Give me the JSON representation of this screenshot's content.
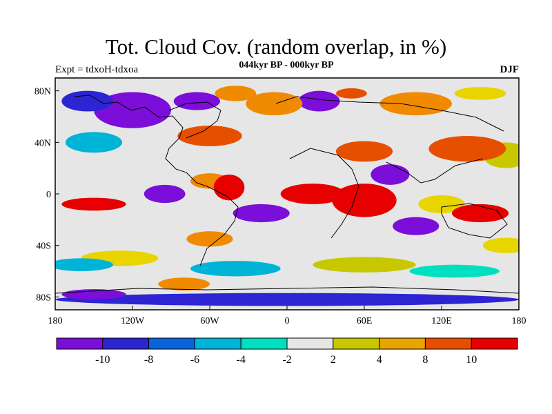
{
  "title": "Tot. Cloud Cov. (random overlap, in %)",
  "subtitle": "044kyr BP - 000kyr BP",
  "experiment": "Expt = tdxoH-tdxoa",
  "season": "DJF",
  "map": {
    "projection": "cylindrical-equidistant",
    "lon_range": [
      -180,
      180
    ],
    "lat_range": [
      -90,
      90
    ],
    "y_ticks": [
      {
        "lat": 80,
        "label": "80N"
      },
      {
        "lat": 40,
        "label": "40N"
      },
      {
        "lat": 0,
        "label": "0"
      },
      {
        "lat": -40,
        "label": "40S"
      },
      {
        "lat": -80,
        "label": "80S"
      }
    ],
    "x_ticks": [
      {
        "lon": -180,
        "label": "180"
      },
      {
        "lon": -120,
        "label": "120W"
      },
      {
        "lon": -60,
        "label": "60W"
      },
      {
        "lon": 0,
        "label": "0"
      },
      {
        "lon": 60,
        "label": "60E"
      },
      {
        "lon": 120,
        "label": "120E"
      },
      {
        "lon": 180,
        "label": "180"
      }
    ],
    "background_color": "#e6e6e6",
    "anomaly_patches": [
      {
        "lon": -120,
        "lat": 65,
        "rx": 30,
        "ry": 14,
        "color": "#7b0ed8"
      },
      {
        "lon": -155,
        "lat": 72,
        "rx": 20,
        "ry": 8,
        "color": "#2d24d2"
      },
      {
        "lon": -70,
        "lat": 72,
        "rx": 18,
        "ry": 7,
        "color": "#7b0ed8"
      },
      {
        "lon": -40,
        "lat": 78,
        "rx": 16,
        "ry": 6,
        "color": "#f08a00"
      },
      {
        "lon": 25,
        "lat": 72,
        "rx": 16,
        "ry": 8,
        "color": "#7b0ed8"
      },
      {
        "lon": 50,
        "lat": 78,
        "rx": 12,
        "ry": 4,
        "color": "#e64f00"
      },
      {
        "lon": -10,
        "lat": 70,
        "rx": 22,
        "ry": 9,
        "color": "#f08a00"
      },
      {
        "lon": 100,
        "lat": 70,
        "rx": 28,
        "ry": 9,
        "color": "#f08a00"
      },
      {
        "lon": 150,
        "lat": 78,
        "rx": 20,
        "ry": 5,
        "color": "#e8d500"
      },
      {
        "lon": -60,
        "lat": 45,
        "rx": 25,
        "ry": 8,
        "color": "#e64f00"
      },
      {
        "lon": -150,
        "lat": 40,
        "rx": 22,
        "ry": 8,
        "color": "#00b4d8"
      },
      {
        "lon": 170,
        "lat": 30,
        "rx": 18,
        "ry": 10,
        "color": "#c8c800"
      },
      {
        "lon": 60,
        "lat": 33,
        "rx": 22,
        "ry": 8,
        "color": "#e64f00"
      },
      {
        "lon": 80,
        "lat": 15,
        "rx": 15,
        "ry": 8,
        "color": "#7b0ed8"
      },
      {
        "lon": 140,
        "lat": 35,
        "rx": 30,
        "ry": 10,
        "color": "#e64f00"
      },
      {
        "lon": -95,
        "lat": 0,
        "rx": 16,
        "ry": 7,
        "color": "#7b0ed8"
      },
      {
        "lon": -150,
        "lat": -8,
        "rx": 25,
        "ry": 5,
        "color": "#e60000"
      },
      {
        "lon": -60,
        "lat": 10,
        "rx": 15,
        "ry": 6,
        "color": "#f08a00"
      },
      {
        "lon": -45,
        "lat": 5,
        "rx": 12,
        "ry": 10,
        "color": "#e60000"
      },
      {
        "lon": 20,
        "lat": 0,
        "rx": 25,
        "ry": 8,
        "color": "#e60000"
      },
      {
        "lon": 60,
        "lat": -5,
        "rx": 25,
        "ry": 13,
        "color": "#e60000"
      },
      {
        "lon": -20,
        "lat": -15,
        "rx": 22,
        "ry": 7,
        "color": "#7b0ed8"
      },
      {
        "lon": -60,
        "lat": -35,
        "rx": 18,
        "ry": 6,
        "color": "#f08a00"
      },
      {
        "lon": 120,
        "lat": -8,
        "rx": 18,
        "ry": 7,
        "color": "#e8d500"
      },
      {
        "lon": 100,
        "lat": -25,
        "rx": 18,
        "ry": 7,
        "color": "#7b0ed8"
      },
      {
        "lon": 150,
        "lat": -15,
        "rx": 22,
        "ry": 7,
        "color": "#e60000"
      },
      {
        "lon": 170,
        "lat": -40,
        "rx": 18,
        "ry": 6,
        "color": "#e8d500"
      },
      {
        "lon": -130,
        "lat": -50,
        "rx": 30,
        "ry": 6,
        "color": "#e8d500"
      },
      {
        "lon": -160,
        "lat": -55,
        "rx": 25,
        "ry": 5,
        "color": "#00b4d8"
      },
      {
        "lon": -40,
        "lat": -58,
        "rx": 35,
        "ry": 6,
        "color": "#00b4d8"
      },
      {
        "lon": 60,
        "lat": -55,
        "rx": 40,
        "ry": 6,
        "color": "#c8c800"
      },
      {
        "lon": 130,
        "lat": -60,
        "rx": 35,
        "ry": 5,
        "color": "#00e0c0"
      },
      {
        "lon": -80,
        "lat": -70,
        "rx": 20,
        "ry": 5,
        "color": "#f08a00"
      },
      {
        "lon": 0,
        "lat": -82,
        "rx": 180,
        "ry": 5,
        "color": "#2d24d2"
      },
      {
        "lon": -150,
        "lat": -78,
        "rx": 25,
        "ry": 4,
        "color": "#7b0ed8"
      }
    ]
  },
  "colorbar": {
    "colors": [
      "#7b0ed8",
      "#2d24d2",
      "#0a64d8",
      "#00b4d8",
      "#00e0c0",
      "#e6e6e6",
      "#c8c800",
      "#e8a500",
      "#e64f00",
      "#e60000"
    ],
    "labels": [
      "-10",
      "-8",
      "-6",
      "-4",
      "-2",
      "2",
      "4",
      "8",
      "10"
    ]
  }
}
